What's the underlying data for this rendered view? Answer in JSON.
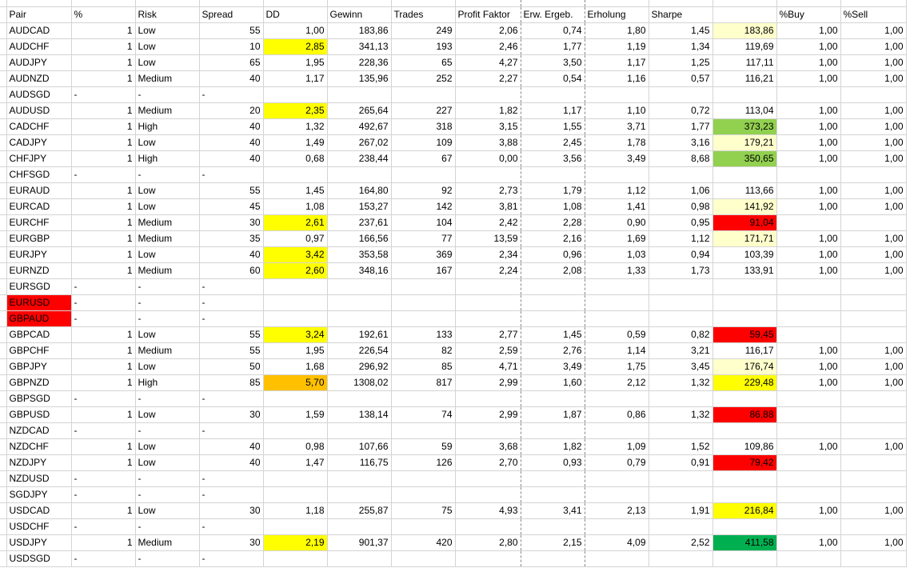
{
  "colors": {
    "yellow": "#ffff00",
    "orange": "#ffc000",
    "red": "#ff0000",
    "light_yellow": "#ffffcc",
    "light_green": "#92d050",
    "green": "#00b050"
  },
  "headers": [
    "Pair",
    "%",
    "Risk",
    "Spread",
    "DD",
    "Gewinn",
    "Trades",
    "Profit Faktor",
    "Erw. Ergeb.",
    "Erholung",
    "Sharpe",
    "",
    "%Buy",
    "%Sell"
  ],
  "rows": [
    {
      "pair": "AUDCAD",
      "pct": "1",
      "risk": "Low",
      "spread": "55",
      "dd": "1,00",
      "gewinn": "183,86",
      "trades": "249",
      "pf": "2,06",
      "erw": "0,74",
      "erh": "1,80",
      "sharpe": "1,45",
      "val": "183,86",
      "val_color": "light_yellow",
      "buy": "1,00",
      "sell": "1,00"
    },
    {
      "pair": "AUDCHF",
      "pct": "1",
      "risk": "Low",
      "spread": "10",
      "dd": "2,85",
      "dd_color": "yellow",
      "gewinn": "341,13",
      "trades": "193",
      "pf": "2,46",
      "erw": "1,77",
      "erh": "1,19",
      "sharpe": "1,34",
      "val": "119,69",
      "buy": "1,00",
      "sell": "1,00"
    },
    {
      "pair": "AUDJPY",
      "pct": "1",
      "risk": "Low",
      "spread": "65",
      "dd": "1,95",
      "gewinn": "228,36",
      "trades": "65",
      "pf": "4,27",
      "erw": "3,50",
      "erh": "1,17",
      "sharpe": "1,25",
      "val": "117,11",
      "buy": "1,00",
      "sell": "1,00"
    },
    {
      "pair": "AUDNZD",
      "pct": "1",
      "risk": "Medium",
      "spread": "40",
      "dd": "1,17",
      "gewinn": "135,96",
      "trades": "252",
      "pf": "2,27",
      "erw": "0,54",
      "erh": "1,16",
      "sharpe": "0,57",
      "val": "116,21",
      "buy": "1,00",
      "sell": "1,00"
    },
    {
      "pair": "AUDSGD",
      "pct": "-",
      "risk": "-",
      "spread": "-"
    },
    {
      "pair": "AUDUSD",
      "pct": "1",
      "risk": "Medium",
      "spread": "20",
      "dd": "2,35",
      "dd_color": "yellow",
      "gewinn": "265,64",
      "trades": "227",
      "pf": "1,82",
      "erw": "1,17",
      "erh": "1,10",
      "sharpe": "0,72",
      "val": "113,04",
      "buy": "1,00",
      "sell": "1,00"
    },
    {
      "pair": "CADCHF",
      "pct": "1",
      "risk": "High",
      "spread": "40",
      "dd": "1,32",
      "gewinn": "492,67",
      "trades": "318",
      "pf": "3,15",
      "erw": "1,55",
      "erh": "3,71",
      "sharpe": "1,77",
      "val": "373,23",
      "val_color": "light_green",
      "buy": "1,00",
      "sell": "1,00"
    },
    {
      "pair": "CADJPY",
      "pct": "1",
      "risk": "Low",
      "spread": "40",
      "dd": "1,49",
      "gewinn": "267,02",
      "trades": "109",
      "pf": "3,88",
      "erw": "2,45",
      "erh": "1,78",
      "sharpe": "3,16",
      "val": "179,21",
      "val_color": "light_yellow",
      "buy": "1,00",
      "sell": "1,00"
    },
    {
      "pair": "CHFJPY",
      "pct": "1",
      "risk": "High",
      "spread": "40",
      "dd": "0,68",
      "gewinn": "238,44",
      "trades": "67",
      "pf": "0,00",
      "erw": "3,56",
      "erh": "3,49",
      "sharpe": "8,68",
      "val": "350,65",
      "val_color": "light_green",
      "buy": "1,00",
      "sell": "1,00"
    },
    {
      "pair": "CHFSGD",
      "pct": "-",
      "risk": "-",
      "spread": "-"
    },
    {
      "pair": "EURAUD",
      "pct": "1",
      "risk": "Low",
      "spread": "55",
      "dd": "1,45",
      "gewinn": "164,80",
      "trades": "92",
      "pf": "2,73",
      "erw": "1,79",
      "erh": "1,12",
      "sharpe": "1,06",
      "val": "113,66",
      "buy": "1,00",
      "sell": "1,00"
    },
    {
      "pair": "EURCAD",
      "pct": "1",
      "risk": "Low",
      "spread": "45",
      "dd": "1,08",
      "gewinn": "153,27",
      "trades": "142",
      "pf": "3,81",
      "erw": "1,08",
      "erh": "1,41",
      "sharpe": "0,98",
      "val": "141,92",
      "val_color": "light_yellow",
      "buy": "1,00",
      "sell": "1,00"
    },
    {
      "pair": "EURCHF",
      "pct": "1",
      "risk": "Medium",
      "spread": "30",
      "dd": "2,61",
      "dd_color": "yellow",
      "gewinn": "237,61",
      "trades": "104",
      "pf": "2,42",
      "erw": "2,28",
      "erh": "0,90",
      "sharpe": "0,95",
      "val": "91,04",
      "val_color": "red"
    },
    {
      "pair": "EURGBP",
      "pct": "1",
      "risk": "Medium",
      "spread": "35",
      "dd": "0,97",
      "gewinn": "166,56",
      "trades": "77",
      "pf": "13,59",
      "erw": "2,16",
      "erh": "1,69",
      "sharpe": "1,12",
      "val": "171,71",
      "val_color": "light_yellow",
      "buy": "1,00",
      "sell": "1,00"
    },
    {
      "pair": "EURJPY",
      "pct": "1",
      "risk": "Low",
      "spread": "40",
      "dd": "3,42",
      "dd_color": "yellow",
      "gewinn": "353,58",
      "trades": "369",
      "pf": "2,34",
      "erw": "0,96",
      "erh": "1,03",
      "sharpe": "0,94",
      "val": "103,39",
      "buy": "1,00",
      "sell": "1,00"
    },
    {
      "pair": "EURNZD",
      "pct": "1",
      "risk": "Medium",
      "spread": "60",
      "dd": "2,60",
      "dd_color": "yellow",
      "gewinn": "348,16",
      "trades": "167",
      "pf": "2,24",
      "erw": "2,08",
      "erh": "1,33",
      "sharpe": "1,73",
      "val": "133,91",
      "buy": "1,00",
      "sell": "1,00"
    },
    {
      "pair": "EURSGD",
      "pct": "-",
      "risk": "-",
      "spread": "-"
    },
    {
      "pair": "EURUSD",
      "pair_color": "red",
      "pct": "-",
      "risk": "-",
      "spread": "-"
    },
    {
      "pair": "GBPAUD",
      "pair_color": "red",
      "pct": "-",
      "risk": "-",
      "spread": "-"
    },
    {
      "pair": "GBPCAD",
      "pct": "1",
      "risk": "Low",
      "spread": "55",
      "dd": "3,24",
      "dd_color": "yellow",
      "gewinn": "192,61",
      "trades": "133",
      "pf": "2,77",
      "erw": "1,45",
      "erh": "0,59",
      "sharpe": "0,82",
      "val": "59,45",
      "val_color": "red"
    },
    {
      "pair": "GBPCHF",
      "pct": "1",
      "risk": "Medium",
      "spread": "55",
      "dd": "1,95",
      "gewinn": "226,54",
      "trades": "82",
      "pf": "2,59",
      "erw": "2,76",
      "erh": "1,14",
      "sharpe": "3,21",
      "val": "116,17",
      "buy": "1,00",
      "sell": "1,00"
    },
    {
      "pair": "GBPJPY",
      "pct": "1",
      "risk": "Low",
      "spread": "50",
      "dd": "1,68",
      "gewinn": "296,92",
      "trades": "85",
      "pf": "4,71",
      "erw": "3,49",
      "erh": "1,75",
      "sharpe": "3,45",
      "val": "176,74",
      "val_color": "light_yellow",
      "buy": "1,00",
      "sell": "1,00"
    },
    {
      "pair": "GBPNZD",
      "pct": "1",
      "risk": "High",
      "spread": "85",
      "dd": "5,70",
      "dd_color": "orange",
      "gewinn": "1308,02",
      "trades": "817",
      "pf": "2,99",
      "erw": "1,60",
      "erh": "2,12",
      "sharpe": "1,32",
      "val": "229,48",
      "val_color": "yellow",
      "buy": "1,00",
      "sell": "1,00"
    },
    {
      "pair": "GBPSGD",
      "pct": "-",
      "risk": "-",
      "spread": "-"
    },
    {
      "pair": "GBPUSD",
      "pct": "1",
      "risk": "Low",
      "spread": "30",
      "dd": "1,59",
      "gewinn": "138,14",
      "trades": "74",
      "pf": "2,99",
      "erw": "1,87",
      "erh": "0,86",
      "sharpe": "1,32",
      "val": "86,88",
      "val_color": "red"
    },
    {
      "pair": "NZDCAD",
      "pct": "-",
      "risk": "-",
      "spread": "-"
    },
    {
      "pair": "NZDCHF",
      "pct": "1",
      "risk": "Low",
      "spread": "40",
      "dd": "0,98",
      "gewinn": "107,66",
      "trades": "59",
      "pf": "3,68",
      "erw": "1,82",
      "erh": "1,09",
      "sharpe": "1,52",
      "val": "109,86",
      "buy": "1,00",
      "sell": "1,00"
    },
    {
      "pair": "NZDJPY",
      "pct": "1",
      "risk": "Low",
      "spread": "40",
      "dd": "1,47",
      "gewinn": "116,75",
      "trades": "126",
      "pf": "2,70",
      "erw": "0,93",
      "erh": "0,79",
      "sharpe": "0,91",
      "val": "79,42",
      "val_color": "red"
    },
    {
      "pair": "NZDUSD",
      "pct": "-",
      "risk": "-",
      "spread": "-"
    },
    {
      "pair": "SGDJPY",
      "pct": "-",
      "risk": "-",
      "spread": "-"
    },
    {
      "pair": "USDCAD",
      "pct": "1",
      "risk": "Low",
      "spread": "30",
      "dd": "1,18",
      "gewinn": "255,87",
      "trades": "75",
      "pf": "4,93",
      "erw": "3,41",
      "erh": "2,13",
      "sharpe": "1,91",
      "val": "216,84",
      "val_color": "yellow",
      "buy": "1,00",
      "sell": "1,00"
    },
    {
      "pair": "USDCHF",
      "pct": "-",
      "risk": "-",
      "spread": "-"
    },
    {
      "pair": "USDJPY",
      "pct": "1",
      "risk": "Medium",
      "spread": "30",
      "dd": "2,19",
      "dd_color": "yellow",
      "gewinn": "901,37",
      "trades": "420",
      "pf": "2,80",
      "erw": "2,15",
      "erh": "4,09",
      "sharpe": "2,52",
      "val": "411,58",
      "val_color": "green",
      "buy": "1,00",
      "sell": "1,00"
    },
    {
      "pair": "USDSGD",
      "pct": "-",
      "risk": "-",
      "spread": "-"
    }
  ]
}
